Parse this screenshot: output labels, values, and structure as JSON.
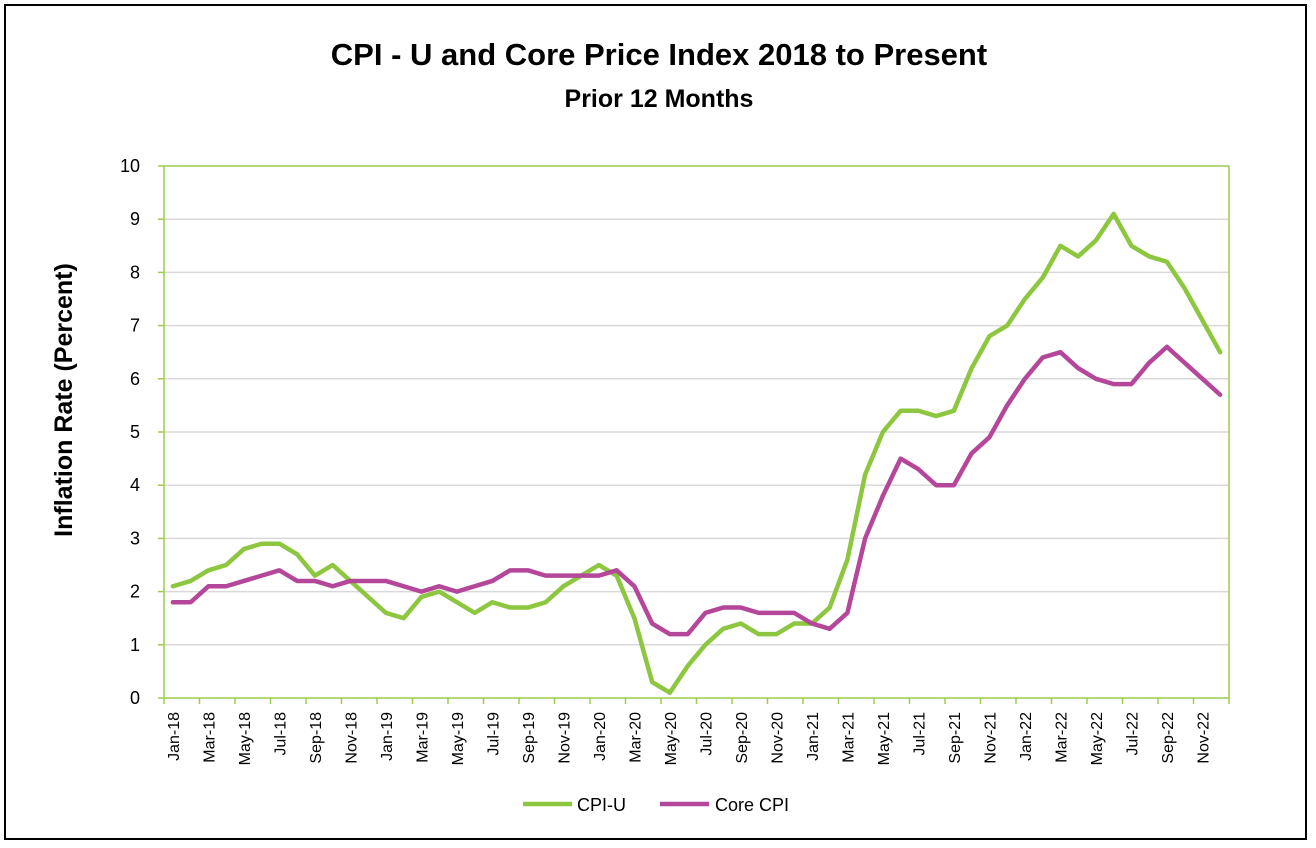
{
  "chart_data": {
    "type": "line",
    "title": "CPI - U and Core Price Index 2018 to Present",
    "subtitle": "Prior 12 Months",
    "xlabel": "",
    "ylabel": "Inflation Rate (Percent)",
    "ylim": [
      0,
      10
    ],
    "yticks": [
      "0",
      "1",
      "2",
      "3",
      "4",
      "5",
      "6",
      "7",
      "8",
      "9",
      "10"
    ],
    "grid": true,
    "legend_position": "bottom-center",
    "categories": [
      "Jan-18",
      "Feb-18",
      "Mar-18",
      "Apr-18",
      "May-18",
      "Jun-18",
      "Jul-18",
      "Aug-18",
      "Sep-18",
      "Oct-18",
      "Nov-18",
      "Dec-18",
      "Jan-19",
      "Feb-19",
      "Mar-19",
      "Apr-19",
      "May-19",
      "Jun-19",
      "Jul-19",
      "Aug-19",
      "Sep-19",
      "Oct-19",
      "Nov-19",
      "Dec-19",
      "Jan-20",
      "Feb-20",
      "Mar-20",
      "Apr-20",
      "May-20",
      "Jun-20",
      "Jul-20",
      "Aug-20",
      "Sep-20",
      "Oct-20",
      "Nov-20",
      "Dec-20",
      "Jan-21",
      "Feb-21",
      "Mar-21",
      "Apr-21",
      "May-21",
      "Jun-21",
      "Jul-21",
      "Aug-21",
      "Sep-21",
      "Oct-21",
      "Nov-21",
      "Dec-21",
      "Jan-22",
      "Feb-22",
      "Mar-22",
      "Apr-22",
      "May-22",
      "Jun-22",
      "Jul-22",
      "Aug-22",
      "Sep-22",
      "Oct-22",
      "Nov-22",
      "Dec-22"
    ],
    "tick_labels": [
      "Jan-18",
      "Mar-18",
      "May-18",
      "Jul-18",
      "Sep-18",
      "Nov-18",
      "Jan-19",
      "Mar-19",
      "May-19",
      "Jul-19",
      "Sep-19",
      "Nov-19",
      "Jan-20",
      "Mar-20",
      "May-20",
      "Jul-20",
      "Sep-20",
      "Nov-20",
      "Jan-21",
      "Mar-21",
      "May-21",
      "Jul-21",
      "Sep-21",
      "Nov-21",
      "Jan-22",
      "Mar-22",
      "May-22",
      "Jul-22",
      "Sep-22",
      "Nov-22"
    ],
    "series": [
      {
        "name": "CPI-U",
        "color": "#8DC63F",
        "values": [
          2.1,
          2.2,
          2.4,
          2.5,
          2.8,
          2.9,
          2.9,
          2.7,
          2.3,
          2.5,
          2.2,
          1.9,
          1.6,
          1.5,
          1.9,
          2.0,
          1.8,
          1.6,
          1.8,
          1.7,
          1.7,
          1.8,
          2.1,
          2.3,
          2.5,
          2.3,
          1.5,
          0.3,
          0.1,
          0.6,
          1.0,
          1.3,
          1.4,
          1.2,
          1.2,
          1.4,
          1.4,
          1.7,
          2.6,
          4.2,
          5.0,
          5.4,
          5.4,
          5.3,
          5.4,
          6.2,
          6.8,
          7.0,
          7.5,
          7.9,
          8.5,
          8.3,
          8.6,
          9.1,
          8.5,
          8.3,
          8.2,
          7.7,
          7.1,
          6.5
        ]
      },
      {
        "name": "Core CPI",
        "color": "#B5479B",
        "values": [
          1.8,
          1.8,
          2.1,
          2.1,
          2.2,
          2.3,
          2.4,
          2.2,
          2.2,
          2.1,
          2.2,
          2.2,
          2.2,
          2.1,
          2.0,
          2.1,
          2.0,
          2.1,
          2.2,
          2.4,
          2.4,
          2.3,
          2.3,
          2.3,
          2.3,
          2.4,
          2.1,
          1.4,
          1.2,
          1.2,
          1.6,
          1.7,
          1.7,
          1.6,
          1.6,
          1.6,
          1.4,
          1.3,
          1.6,
          3.0,
          3.8,
          4.5,
          4.3,
          4.0,
          4.0,
          4.6,
          4.9,
          5.5,
          6.0,
          6.4,
          6.5,
          6.2,
          6.0,
          5.9,
          5.9,
          6.3,
          6.6,
          6.3,
          6.0,
          5.7
        ]
      }
    ],
    "colors": {
      "axis": "#9ACD4C",
      "grid": "#D9D9D9",
      "frame": "#000000"
    }
  }
}
